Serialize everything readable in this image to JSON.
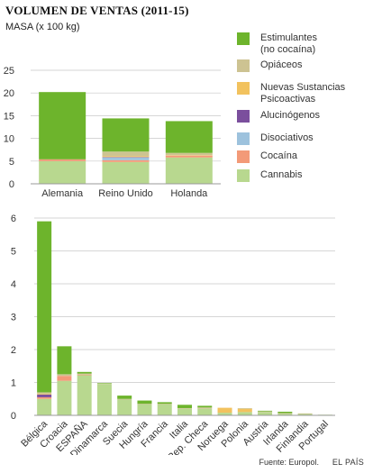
{
  "title": "VOLUMEN DE VENTAS (2011-15)",
  "unit_label": "MASA (x 100 kg)",
  "source": "Fuente: Europol.",
  "brand": "EL PAÍS",
  "colors": {
    "estimulantes": "#6db42c",
    "opiaceos": "#cdc392",
    "nuevas": "#f2c25e",
    "alucinogenos": "#7b4f9d",
    "disociativos": "#9dc2dd",
    "cocaina": "#f39a78",
    "cannabis": "#b8d88f",
    "grid": "#c8c8c8",
    "axis": "#999999"
  },
  "legend": [
    {
      "key": "estimulantes",
      "label": "Estimulantes\n(no cocaína)"
    },
    {
      "key": "opiaceos",
      "label": "Opiáceos"
    },
    {
      "key": "nuevas",
      "label": "Nuevas Sustancias\nPsicoactivas"
    },
    {
      "key": "alucinogenos",
      "label": "Alucinógenos"
    },
    {
      "key": "disociativos",
      "label": "Disociativos"
    },
    {
      "key": "cocaina",
      "label": "Cocaína"
    },
    {
      "key": "cannabis",
      "label": "Cannabis"
    }
  ],
  "chart_data": [
    {
      "type": "bar",
      "stacked": true,
      "categories": [
        "Alemania",
        "Reino Unido",
        "Holanda"
      ],
      "ylim": [
        0,
        25
      ],
      "yticks": [
        0,
        5,
        10,
        15,
        20,
        25
      ],
      "grid": true,
      "legend_position": "right",
      "series": [
        {
          "key": "cannabis",
          "values": [
            5.0,
            4.8,
            5.8
          ]
        },
        {
          "key": "cocaina",
          "values": [
            0.4,
            0.4,
            0.4
          ]
        },
        {
          "key": "disociativos",
          "values": [
            0.0,
            0.6,
            0.0
          ]
        },
        {
          "key": "alucinogenos",
          "values": [
            0.0,
            0.1,
            0.0
          ]
        },
        {
          "key": "nuevas",
          "values": [
            0.0,
            0.2,
            0.1
          ]
        },
        {
          "key": "opiaceos",
          "values": [
            0.0,
            1.0,
            0.5
          ]
        },
        {
          "key": "estimulantes",
          "values": [
            14.8,
            7.3,
            7.0
          ]
        }
      ]
    },
    {
      "type": "bar",
      "stacked": true,
      "categories": [
        "Bélgica",
        "Croacia",
        "ESPAÑA",
        "Dinamarca",
        "Suecia",
        "Hungría",
        "Francia",
        "Italia",
        "Rep. Checa",
        "Noruega",
        "Polonia",
        "Austria",
        "Irlanda",
        "Finlandia",
        "Portugal"
      ],
      "ylim": [
        0,
        6
      ],
      "yticks": [
        0,
        1,
        2,
        3,
        4,
        5,
        6
      ],
      "grid": true,
      "series": [
        {
          "key": "cannabis",
          "values": [
            0.5,
            1.05,
            1.22,
            0.95,
            0.48,
            0.33,
            0.33,
            0.2,
            0.2,
            0.08,
            0.1,
            0.1,
            0.05,
            0.04,
            0.02
          ]
        },
        {
          "key": "cocaina",
          "values": [
            0.05,
            0.15,
            0.02,
            0.0,
            0.0,
            0.0,
            0.0,
            0.0,
            0.0,
            0.0,
            0.0,
            0.0,
            0.0,
            0.0,
            0.0
          ]
        },
        {
          "key": "disociativos",
          "values": [
            0.0,
            0.0,
            0.0,
            0.0,
            0.0,
            0.0,
            0.0,
            0.0,
            0.0,
            0.0,
            0.0,
            0.0,
            0.0,
            0.0,
            0.0
          ]
        },
        {
          "key": "alucinogenos",
          "values": [
            0.08,
            0.0,
            0.0,
            0.0,
            0.0,
            0.0,
            0.0,
            0.0,
            0.0,
            0.0,
            0.0,
            0.0,
            0.0,
            0.0,
            0.0
          ]
        },
        {
          "key": "nuevas",
          "values": [
            0.02,
            0.0,
            0.0,
            0.0,
            0.0,
            0.0,
            0.0,
            0.0,
            0.0,
            0.15,
            0.1,
            0.0,
            0.0,
            0.0,
            0.0
          ]
        },
        {
          "key": "opiaceos",
          "values": [
            0.05,
            0.05,
            0.03,
            0.02,
            0.02,
            0.02,
            0.02,
            0.02,
            0.04,
            0.0,
            0.02,
            0.02,
            0.02,
            0.02,
            0.0
          ]
        },
        {
          "key": "estimulantes",
          "values": [
            5.2,
            0.85,
            0.05,
            0.01,
            0.1,
            0.1,
            0.05,
            0.1,
            0.05,
            0.0,
            0.0,
            0.02,
            0.04,
            0.0,
            0.0
          ]
        }
      ]
    }
  ]
}
